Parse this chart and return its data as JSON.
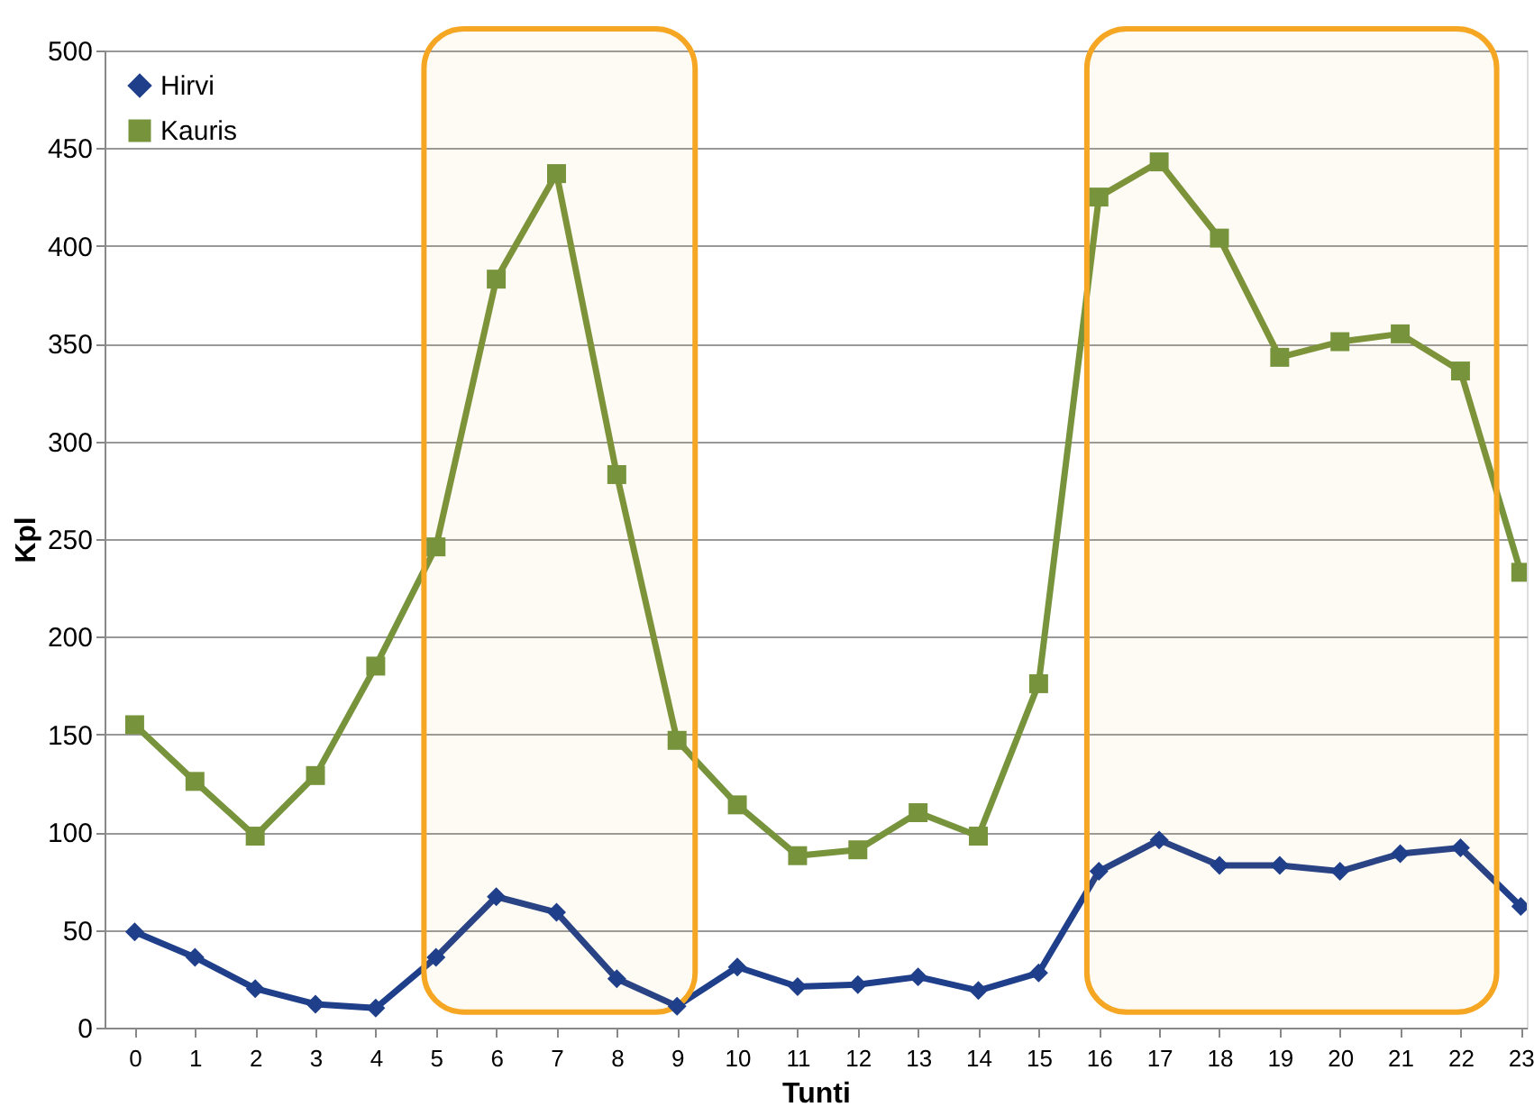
{
  "chart_data": {
    "type": "line",
    "xlabel": "Tunti",
    "ylabel": "Kpl",
    "x": [
      0,
      1,
      2,
      3,
      4,
      5,
      6,
      7,
      8,
      9,
      10,
      11,
      12,
      13,
      14,
      15,
      16,
      17,
      18,
      19,
      20,
      21,
      22,
      23
    ],
    "xlim": [
      -0.5,
      23.1
    ],
    "xticks": [
      0,
      1,
      2,
      3,
      4,
      5,
      6,
      7,
      8,
      9,
      10,
      11,
      12,
      13,
      14,
      15,
      16,
      17,
      18,
      19,
      20,
      21,
      22,
      23
    ],
    "ylim": [
      0,
      500
    ],
    "yticks": [
      0,
      50,
      100,
      150,
      200,
      250,
      300,
      350,
      400,
      450,
      500
    ],
    "grid": "y",
    "legend": "top left",
    "line_style": "solid",
    "series": [
      {
        "name": "Hirvi",
        "color": "#1f3f8a",
        "marker": "diamond",
        "values": [
          49,
          36,
          20,
          12,
          10,
          36,
          67,
          59,
          25,
          11,
          31,
          21,
          22,
          26,
          19,
          28,
          80,
          96,
          83,
          83,
          80,
          89,
          92,
          62
        ]
      },
      {
        "name": "Kauris",
        "color": "#77933c",
        "marker": "square",
        "values": [
          155,
          126,
          98,
          129,
          185,
          246,
          383,
          437,
          283,
          147,
          114,
          88,
          91,
          110,
          98,
          176,
          425,
          443,
          404,
          343,
          351,
          355,
          336,
          233
        ]
      }
    ],
    "bands": [
      {
        "axis": "x",
        "from": 4.8,
        "to": 9.3,
        "color": "#f5a623"
      },
      {
        "axis": "x",
        "from": 15.8,
        "to": 22.6,
        "color": "#f5a623"
      }
    ]
  }
}
